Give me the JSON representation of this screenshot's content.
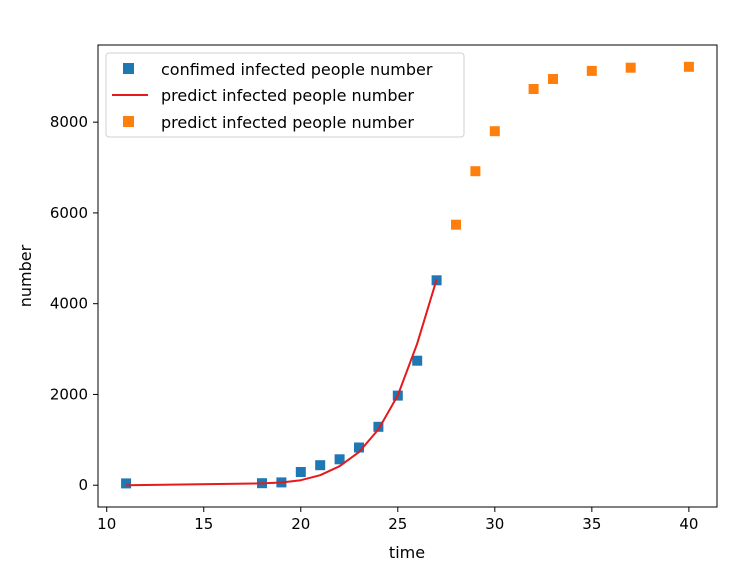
{
  "chart_data": {
    "type": "scatter",
    "title": "",
    "xlabel": "time",
    "ylabel": "number",
    "xlim": [
      9.55,
      41.45
    ],
    "ylim": [
      -480,
      9700
    ],
    "xticks": [
      10,
      15,
      20,
      25,
      30,
      35,
      40
    ],
    "yticks": [
      0,
      2000,
      4000,
      6000,
      8000
    ],
    "grid": false,
    "legend_position": "top-left",
    "series": [
      {
        "name": "confimed infected people number",
        "kind": "scatter",
        "marker": "square",
        "color": "#1f77b4",
        "x": [
          11,
          18,
          19,
          20,
          21,
          22,
          23,
          24,
          25,
          26,
          27
        ],
        "y": [
          41,
          45,
          62,
          291,
          440,
          571,
          830,
          1287,
          1975,
          2744,
          4515
        ]
      },
      {
        "name": "predict infected people number",
        "kind": "line",
        "color": "#e41a1c",
        "x": [
          11,
          18,
          19,
          20,
          21,
          22,
          23,
          24,
          25,
          26,
          27
        ],
        "y": [
          0,
          40,
          60,
          110,
          220,
          420,
          730,
          1230,
          1980,
          3120,
          4530
        ]
      },
      {
        "name": "predict infected people number",
        "kind": "scatter",
        "marker": "square",
        "color": "#ff7f0e",
        "x": [
          28,
          29,
          30,
          32,
          33,
          35,
          37,
          40
        ],
        "y": [
          5740,
          6920,
          7800,
          8730,
          8950,
          9130,
          9200,
          9220
        ]
      }
    ]
  }
}
